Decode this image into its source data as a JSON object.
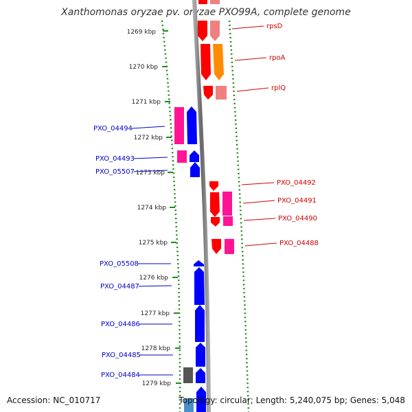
{
  "title": "Xanthomonas oryzae pv. oryzae PXO99A, complete genome",
  "footer": {
    "accession": "Accession: NC_010717",
    "topology": "Topology: circular; Length: 5,240,075 bp; Genes: 5,048"
  },
  "ticks": [
    "1269 kbp",
    "1270 kbp",
    "1271 kbp",
    "1272 kbp",
    "1273 kbp",
    "1274 kbp",
    "1275 kbp",
    "1276 kbp",
    "1277 kbp",
    "1278 kbp",
    "1279 kbp"
  ],
  "labels_right": [
    "rpsD",
    "rpoA",
    "rplQ",
    "PXO_04492",
    "PXO_04491",
    "PXO_04490",
    "PXO_04488"
  ],
  "labels_left": [
    "PXO_04494",
    "PXO_04493",
    "PXO_05507",
    "PXO_05508",
    "PXO_04487",
    "PXO_04486",
    "PXO_04485",
    "PXO_04484"
  ],
  "colors": {
    "red": "#ff0000",
    "salmon": "#f08080",
    "orange": "#ff8c00",
    "pink": "#ff1493",
    "blue": "#0000ff",
    "gray": "#555555",
    "steel": "#4a90c8",
    "backbone": "#888888",
    "green": "#1a8a1a"
  }
}
